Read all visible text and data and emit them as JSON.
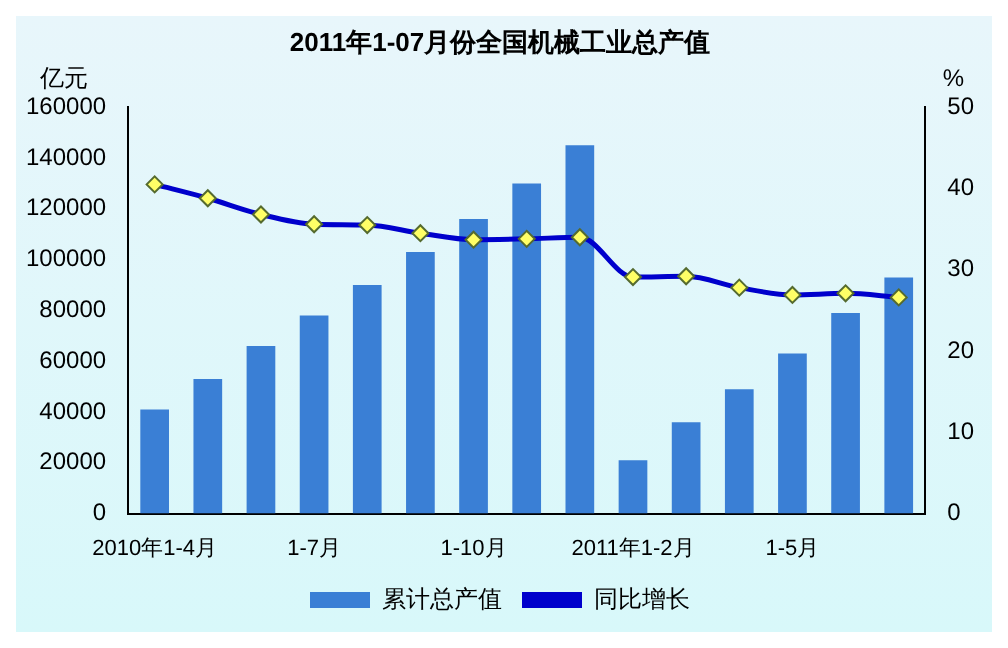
{
  "chart_data": {
    "type": "bar",
    "title": "2011年1-07月份全国机械工业总产值",
    "ylabel": "亿元",
    "y2label": "%",
    "categories": [
      "2010年1-4月",
      null,
      null,
      "1-7月",
      null,
      null,
      "1-10月",
      null,
      null,
      "2011年1-2月",
      null,
      null,
      "1-5月",
      null,
      null
    ],
    "series": [
      {
        "name": "累计总产值",
        "color": "#3a7fd5",
        "values": [
          41000,
          53000,
          66000,
          78000,
          90000,
          103000,
          116000,
          130000,
          145000,
          21000,
          36000,
          49000,
          63000,
          79000,
          93000
        ]
      },
      {
        "name": "同比增长",
        "type": "line",
        "axis": "y2",
        "color": "#0000cc",
        "marker": "diamond",
        "values": [
          40.5,
          38.8,
          36.8,
          35.6,
          35.5,
          34.5,
          33.7,
          33.8,
          34.0,
          29.1,
          29.2,
          27.8,
          26.9,
          27.1,
          26.6
        ]
      }
    ],
    "ylim": [
      0,
      160000
    ],
    "yticks": [
      0,
      20000,
      40000,
      60000,
      80000,
      100000,
      120000,
      140000,
      160000
    ],
    "y2lim": [
      0,
      50
    ],
    "y2ticks": [
      0,
      10,
      20,
      30,
      40,
      50
    ],
    "grid": false,
    "legend": "bottom"
  }
}
